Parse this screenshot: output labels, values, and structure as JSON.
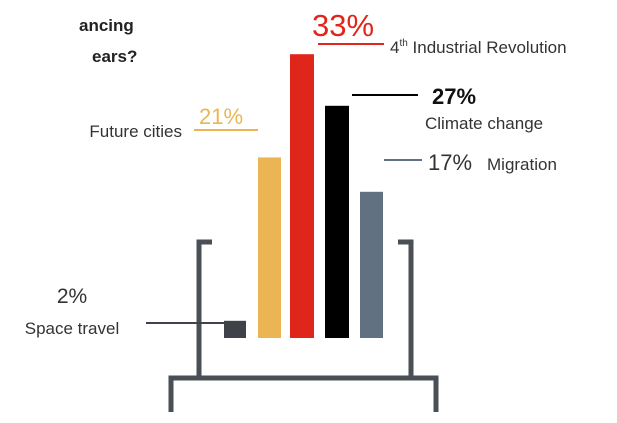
{
  "question": {
    "line1": "ancing",
    "line2": "ears?"
  },
  "chart_data": {
    "type": "bar",
    "categories": [
      "Space travel",
      "Future cities",
      "4th Industrial Revolution",
      "Climate change",
      "Migration"
    ],
    "values": [
      2,
      21,
      33,
      27,
      17
    ],
    "value_labels": [
      "2%",
      "21%",
      "33%",
      "27%",
      "17%"
    ],
    "colors": [
      "#3f4349",
      "#ecb553",
      "#e0261a",
      "#000000",
      "#627182"
    ],
    "ylim": [
      0,
      33
    ],
    "axis_visible": false,
    "grid": false,
    "annotations": {
      "space_travel": {
        "pct": "2%",
        "name": "Space travel"
      },
      "future_cities": {
        "pct": "21%",
        "name": "Future cities"
      },
      "industrial": {
        "pct": "33%",
        "name_prefix": "4",
        "name_sup": "th",
        "name_rest": " Industrial Revolution"
      },
      "climate": {
        "pct": "27%",
        "name": "Climate change"
      },
      "migration": {
        "pct": "17%",
        "name": "Migration"
      }
    }
  },
  "colors": {
    "frame": "#4a4f55",
    "text": "#333333"
  }
}
